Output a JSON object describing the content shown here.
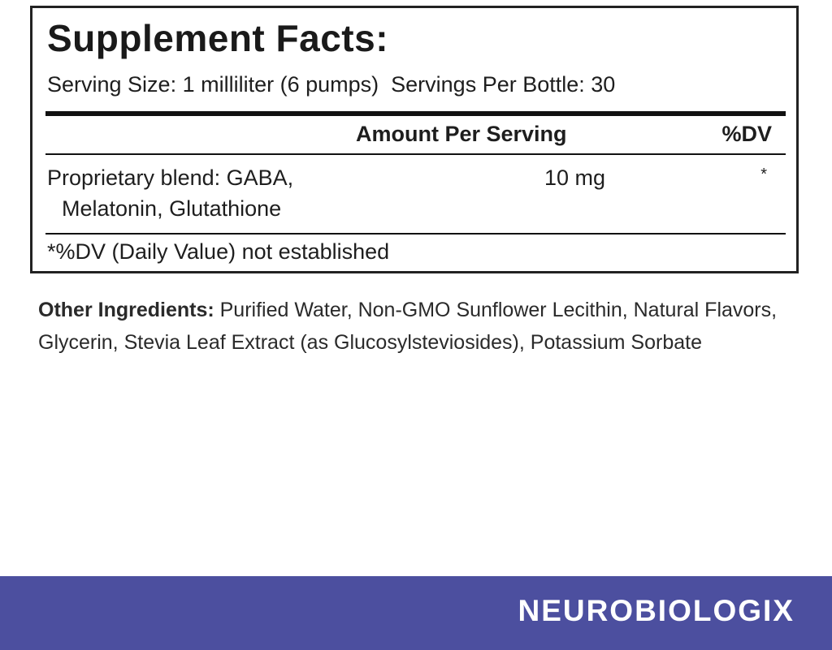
{
  "label": {
    "title": "Supplement Facts:",
    "serving_size": "Serving Size: 1 milliliter (6 pumps)",
    "servings_per_bottle": "Servings Per Bottle: 30",
    "headers": {
      "amount": "Amount Per Serving",
      "dv": "%DV"
    },
    "rows": [
      {
        "name_line1": "Proprietary blend: GABA,",
        "name_line2": "Melatonin, Glutathione",
        "amount": "10 mg",
        "dv": "*"
      }
    ],
    "footnote": "*%DV (Daily Value) not established"
  },
  "other_ingredients": {
    "label": "Other Ingredients:",
    "text": " Purified Water, Non-GMO Sunflower Lecithin, Natural Flavors, Glycerin, Stevia Leaf Extract (as Glucosylsteviosides), Potassium Sorbate"
  },
  "brand": {
    "name": "NEUROBIOLOGIX",
    "color": "#4c4f9f"
  }
}
